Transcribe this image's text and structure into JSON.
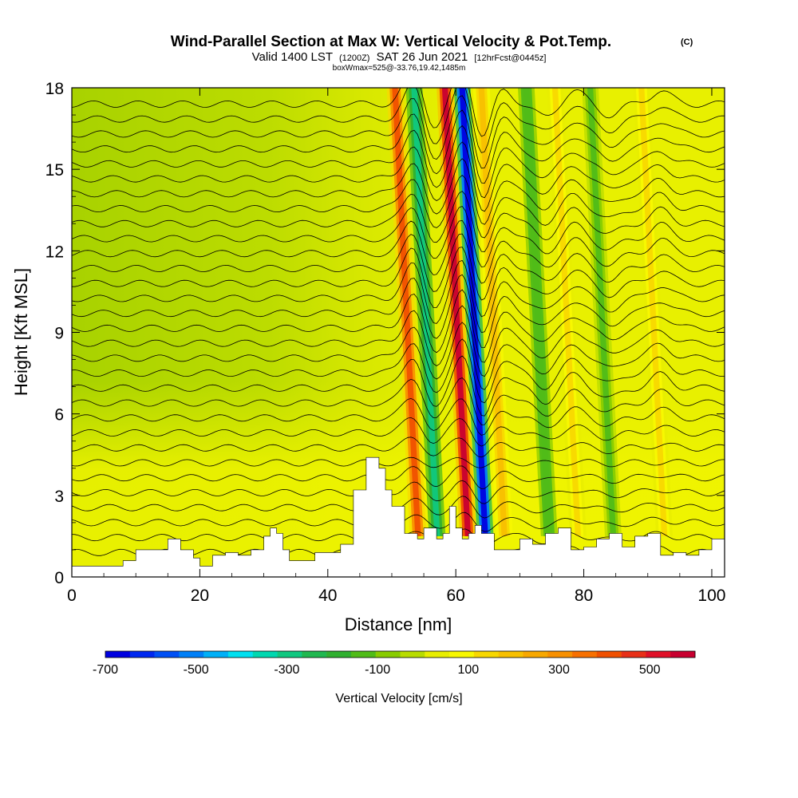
{
  "chart_data": {
    "type": "heatmap",
    "title": "Wind-Parallel Section at Max W: Vertical Velocity & Pot.Temp.",
    "title_mark": "(C)",
    "subtitle_main_a": "Valid 1400 LST",
    "subtitle_small_a": "(1200Z)",
    "subtitle_main_b": "SAT 26 Jun 2021",
    "subtitle_small_b": "[12hrFcst@0445z]",
    "subtitle2": "boxWmax=525@-33.76,19.42,1485m",
    "xlabel": "Distance [nm]",
    "ylabel": "Height [Kft MSL]",
    "xlim": [
      0,
      102
    ],
    "ylim": [
      0,
      18
    ],
    "x_ticks": [
      "0",
      "20",
      "40",
      "60",
      "80",
      "100"
    ],
    "y_ticks": [
      "0",
      "3",
      "6",
      "9",
      "12",
      "15",
      "18"
    ],
    "colorbar": {
      "label": "Vertical Velocity [cm/s]",
      "range": [
        -700,
        600
      ],
      "tick_labels": [
        "-700",
        "-500",
        "-300",
        "-100",
        "100",
        "300",
        "500"
      ],
      "colors": [
        "#0000e0",
        "#0028f0",
        "#0050f5",
        "#0080f8",
        "#00b0f8",
        "#00e0f0",
        "#00d8b0",
        "#10c880",
        "#20b850",
        "#30b030",
        "#50bc18",
        "#88cc00",
        "#b8dc00",
        "#e8ee00",
        "#f8f800",
        "#f8d800",
        "#f8c000",
        "#f8a800",
        "#f89000",
        "#f87000",
        "#f05000",
        "#e83018",
        "#e01028",
        "#c80030"
      ]
    },
    "terrain_kft": {
      "x": [
        0,
        4,
        8,
        10,
        12,
        14,
        15,
        17,
        19,
        20,
        22,
        24,
        26,
        28,
        30,
        31,
        32,
        33,
        34,
        36,
        38,
        40,
        42,
        44,
        46,
        47,
        48,
        49,
        50,
        52,
        54,
        55,
        56,
        57,
        58,
        59,
        60,
        61,
        62,
        63,
        64,
        66,
        68,
        70,
        72,
        74,
        76,
        78,
        80,
        82,
        84,
        86,
        88,
        90,
        92,
        94,
        96,
        98,
        100,
        102
      ],
      "y": [
        0.4,
        0.4,
        0.6,
        1.0,
        1.0,
        1.0,
        1.4,
        1.0,
        0.7,
        0.4,
        0.8,
        0.9,
        0.8,
        1.0,
        1.5,
        1.8,
        1.6,
        1.0,
        0.6,
        0.6,
        0.9,
        0.9,
        1.2,
        3.2,
        4.4,
        4.4,
        4.0,
        3.2,
        2.6,
        1.6,
        1.4,
        1.8,
        1.8,
        1.4,
        1.6,
        2.6,
        1.8,
        1.4,
        1.6,
        1.9,
        1.6,
        1.0,
        1.0,
        1.4,
        1.2,
        1.6,
        1.8,
        1.0,
        1.1,
        1.4,
        1.6,
        1.1,
        1.5,
        1.6,
        0.8,
        0.9,
        0.8,
        1.0,
        1.4,
        0.7
      ]
    },
    "features": [
      {
        "kind": "updraft",
        "x": 53.5,
        "w_cms": 400
      },
      {
        "kind": "downdraft",
        "x": 56.5,
        "w_cms": -300
      },
      {
        "kind": "updraft",
        "x": 61.3,
        "w_cms": 600
      },
      {
        "kind": "downdraft",
        "x": 64.0,
        "w_cms": -700
      },
      {
        "kind": "updraft",
        "x": 67.0,
        "w_cms": 200
      },
      {
        "kind": "downdraft",
        "x": 74.0,
        "w_cms": -150
      },
      {
        "kind": "updraft",
        "x": 78.5,
        "w_cms": 150
      },
      {
        "kind": "downdraft",
        "x": 84.0,
        "w_cms": -120
      },
      {
        "kind": "updraft",
        "x": 92.0,
        "w_cms": 150
      }
    ]
  }
}
